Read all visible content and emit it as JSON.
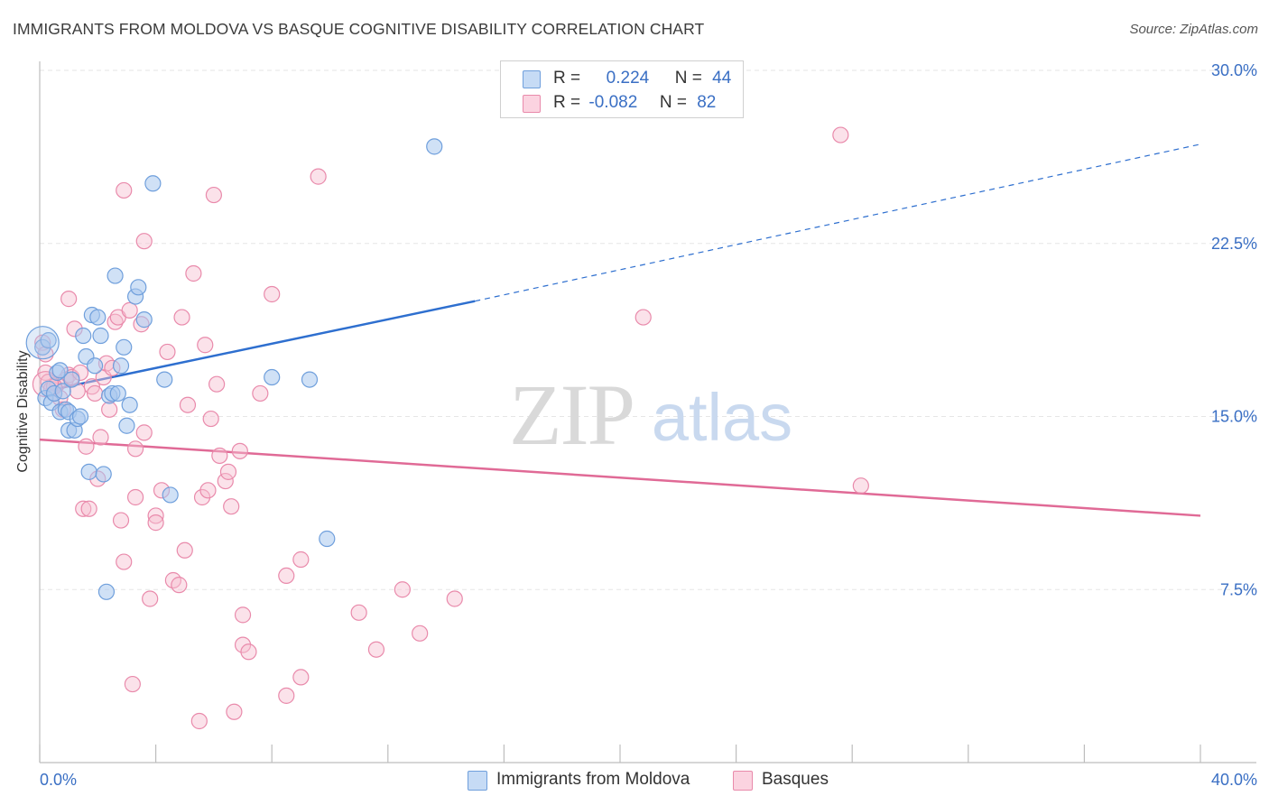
{
  "title": "IMMIGRANTS FROM MOLDOVA VS BASQUE COGNITIVE DISABILITY CORRELATION CHART",
  "source": "Source: ZipAtlas.com",
  "watermark": {
    "zip": "ZIP",
    "atlas": "atlas"
  },
  "colors": {
    "blue_fill": "#a9c8ef",
    "blue_stroke": "#6f9fdc",
    "blue_line": "#2e6fcf",
    "pink_fill": "#f7bfd1",
    "pink_stroke": "#e98aab",
    "pink_line": "#e06a96",
    "tick_text": "#3a6fc4",
    "grid": "#e6e6e6"
  },
  "legend": {
    "rows": [
      {
        "r_label": "R =",
        "r_value": "0.224",
        "n_label": "N =",
        "n_value": "44"
      },
      {
        "r_label": "R =",
        "r_value": "-0.082",
        "n_label": "N =",
        "n_value": "82"
      }
    ]
  },
  "bottom_legend": [
    "Immigrants from Moldova",
    "Basques"
  ],
  "chart_data": {
    "type": "scatter",
    "title": "IMMIGRANTS FROM MOLDOVA VS BASQUE COGNITIVE DISABILITY CORRELATION CHART",
    "xlabel": "",
    "ylabel": "Cognitive Disability",
    "xlim": [
      0,
      40
    ],
    "ylim": [
      0,
      30
    ],
    "x_tick_labels": [
      "0.0%",
      "40.0%"
    ],
    "y_ticks": [
      7.5,
      15.0,
      22.5,
      30.0
    ],
    "y_tick_labels": [
      "7.5%",
      "15.0%",
      "22.5%",
      "30.0%"
    ],
    "grid": true,
    "series": [
      {
        "name": "Immigrants from Moldova",
        "R": 0.224,
        "N": 44,
        "trend": {
          "x0": 0.2,
          "y0": 16.1,
          "x1": 15.0,
          "y1": 20.0,
          "dash_to_x": 40.0,
          "dash_to_y": 26.8
        },
        "points": [
          [
            0.1,
            18.0
          ],
          [
            0.2,
            15.8
          ],
          [
            0.3,
            16.2
          ],
          [
            0.4,
            15.6
          ],
          [
            0.5,
            16.0
          ],
          [
            0.6,
            16.9
          ],
          [
            0.7,
            17.0
          ],
          [
            0.7,
            15.2
          ],
          [
            0.8,
            16.1
          ],
          [
            0.9,
            15.3
          ],
          [
            1.0,
            14.4
          ],
          [
            1.0,
            15.2
          ],
          [
            1.1,
            16.6
          ],
          [
            1.2,
            14.4
          ],
          [
            1.3,
            14.9
          ],
          [
            1.4,
            15.0
          ],
          [
            1.5,
            18.5
          ],
          [
            1.6,
            17.6
          ],
          [
            1.7,
            12.6
          ],
          [
            1.8,
            19.4
          ],
          [
            1.9,
            17.2
          ],
          [
            2.0,
            19.3
          ],
          [
            2.1,
            18.5
          ],
          [
            2.2,
            12.5
          ],
          [
            2.3,
            7.4
          ],
          [
            2.4,
            15.9
          ],
          [
            2.5,
            16.0
          ],
          [
            2.6,
            21.1
          ],
          [
            2.7,
            16.0
          ],
          [
            2.8,
            17.2
          ],
          [
            2.9,
            18.0
          ],
          [
            3.0,
            14.6
          ],
          [
            3.1,
            15.5
          ],
          [
            3.3,
            20.2
          ],
          [
            3.4,
            20.6
          ],
          [
            3.6,
            19.2
          ],
          [
            3.9,
            25.1
          ],
          [
            4.3,
            16.6
          ],
          [
            4.5,
            11.6
          ],
          [
            8.0,
            16.7
          ],
          [
            9.3,
            16.6
          ],
          [
            9.9,
            9.7
          ],
          [
            13.6,
            26.7
          ],
          [
            0.3,
            18.3
          ]
        ]
      },
      {
        "name": "Basques",
        "R": -0.082,
        "N": 82,
        "trend": {
          "x0": 0.0,
          "y0": 14.0,
          "x1": 40.0,
          "y1": 10.7
        },
        "points": [
          [
            0.1,
            18.2
          ],
          [
            0.2,
            16.9
          ],
          [
            0.3,
            16.5
          ],
          [
            0.4,
            16.2
          ],
          [
            0.5,
            16.0
          ],
          [
            0.6,
            16.4
          ],
          [
            0.7,
            15.8
          ],
          [
            0.8,
            15.3
          ],
          [
            0.9,
            16.6
          ],
          [
            1.0,
            16.8
          ],
          [
            1.0,
            20.1
          ],
          [
            1.1,
            16.7
          ],
          [
            1.2,
            18.8
          ],
          [
            1.3,
            16.1
          ],
          [
            1.4,
            16.9
          ],
          [
            1.5,
            11.0
          ],
          [
            1.6,
            13.7
          ],
          [
            1.7,
            11.0
          ],
          [
            1.8,
            16.3
          ],
          [
            1.9,
            16.0
          ],
          [
            2.0,
            12.3
          ],
          [
            2.1,
            14.1
          ],
          [
            2.2,
            16.7
          ],
          [
            2.3,
            17.3
          ],
          [
            2.4,
            15.3
          ],
          [
            2.5,
            17.1
          ],
          [
            2.6,
            19.1
          ],
          [
            2.7,
            19.3
          ],
          [
            2.8,
            10.5
          ],
          [
            2.9,
            8.7
          ],
          [
            2.9,
            24.8
          ],
          [
            3.1,
            19.6
          ],
          [
            3.2,
            3.4
          ],
          [
            3.3,
            13.6
          ],
          [
            3.3,
            11.5
          ],
          [
            3.5,
            19.0
          ],
          [
            3.6,
            14.3
          ],
          [
            3.6,
            22.6
          ],
          [
            3.8,
            7.1
          ],
          [
            4.0,
            10.7
          ],
          [
            4.0,
            10.4
          ],
          [
            4.2,
            11.8
          ],
          [
            4.4,
            17.8
          ],
          [
            4.6,
            7.9
          ],
          [
            4.8,
            7.7
          ],
          [
            4.9,
            19.3
          ],
          [
            5.0,
            9.2
          ],
          [
            5.1,
            15.5
          ],
          [
            5.3,
            21.2
          ],
          [
            5.5,
            1.8
          ],
          [
            5.6,
            11.5
          ],
          [
            5.7,
            18.1
          ],
          [
            5.8,
            11.8
          ],
          [
            5.9,
            14.9
          ],
          [
            6.0,
            24.6
          ],
          [
            6.1,
            16.4
          ],
          [
            6.2,
            13.3
          ],
          [
            6.4,
            12.2
          ],
          [
            6.5,
            12.6
          ],
          [
            6.6,
            11.1
          ],
          [
            6.7,
            2.2
          ],
          [
            6.9,
            13.5
          ],
          [
            7.0,
            6.4
          ],
          [
            7.0,
            5.1
          ],
          [
            7.2,
            4.8
          ],
          [
            7.6,
            16.0
          ],
          [
            8.0,
            20.3
          ],
          [
            8.5,
            2.9
          ],
          [
            8.5,
            8.1
          ],
          [
            9.0,
            3.7
          ],
          [
            9.0,
            8.8
          ],
          [
            9.6,
            25.4
          ],
          [
            11.0,
            6.5
          ],
          [
            11.6,
            4.9
          ],
          [
            12.5,
            7.5
          ],
          [
            13.1,
            5.6
          ],
          [
            14.3,
            7.1
          ],
          [
            20.8,
            19.3
          ],
          [
            27.6,
            27.2
          ],
          [
            28.3,
            12.0
          ],
          [
            0.2,
            17.7
          ],
          [
            0.5,
            16.3
          ]
        ]
      }
    ]
  }
}
